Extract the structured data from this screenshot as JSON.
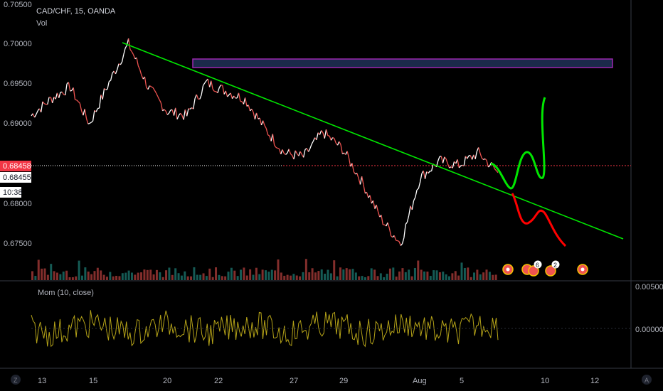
{
  "header": {
    "symbol_line": "CAD/CHF, 15, OANDA",
    "volume_label": "Vol",
    "momentum_label": "Mom (10, close)"
  },
  "price_axis": {
    "ticks": [
      "0.70500",
      "0.70000",
      "0.69500",
      "0.69000",
      "0.68500",
      "0.68000",
      "0.67500"
    ],
    "last_price_badge": "0.68458",
    "bid_badge": "0.68455",
    "countdown_badge": "10:38",
    "badge_color": "#f23645"
  },
  "momentum_axis": {
    "ticks": [
      "0.00500",
      "0.00000"
    ]
  },
  "time_axis": {
    "ticks": [
      "13",
      "15",
      "20",
      "22",
      "27",
      "29",
      "Aug",
      "5",
      "10",
      "12"
    ]
  },
  "corner_buttons": {
    "left": "Z",
    "right": "A"
  },
  "event_markers": {
    "count_a": "6",
    "count_b": "2"
  },
  "colors": {
    "up_candle": "#ffffff",
    "down_candle": "#ef5350",
    "trendline": "#00e600",
    "bullish_projection": "#00e600",
    "bearish_projection": "#ff0000",
    "zone_border": "#9c27b0",
    "zone_fill": "#1b2a4a",
    "momentum_line": "#b5a318",
    "volume_up": "#26a69a",
    "volume_down": "#ef5350"
  },
  "chart_data": {
    "type": "line",
    "series": [
      {
        "values_kind": "price",
        "x": [
          "Jul 13",
          "Jul 14",
          "Jul 15",
          "Jul 16",
          "Jul 17",
          "Jul 18",
          "Jul 19",
          "Jul 20",
          "Jul 21",
          "Jul 22",
          "Jul 23",
          "Jul 24",
          "Jul 25",
          "Jul 26",
          "Jul 27",
          "Jul 28",
          "Jul 29",
          "Jul 30",
          "Jul 31",
          "Aug 1",
          "Aug 2",
          "Aug 3",
          "Aug 4",
          "Aug 5",
          "Aug 6"
        ],
        "values": [
          0.6915,
          0.6935,
          0.695,
          0.6905,
          0.6955,
          0.7002,
          0.695,
          0.692,
          0.6915,
          0.6955,
          0.6945,
          0.6935,
          0.69,
          0.687,
          0.6865,
          0.6895,
          0.6875,
          0.6835,
          0.679,
          0.676,
          0.684,
          0.686,
          0.6855,
          0.687,
          0.6846
        ]
      }
    ],
    "ylim": [
      0.6715,
      0.7055
    ],
    "last_price": 0.68458,
    "drawings": {
      "trendline": {
        "from": [
          "Jul 17",
          0.7
        ],
        "to": [
          "Aug 12",
          0.6756
        ]
      },
      "resistance_zone": {
        "from": "Jul 21",
        "to": "Aug 12",
        "top": 0.6981,
        "bottom": 0.697
      },
      "bullish_projection": "dips to 0.6830 then rallies to 0.6930 around Aug 10",
      "bearish_projection": "falls to about 0.6770 by Aug 11"
    },
    "grid": false,
    "legend": "none"
  }
}
